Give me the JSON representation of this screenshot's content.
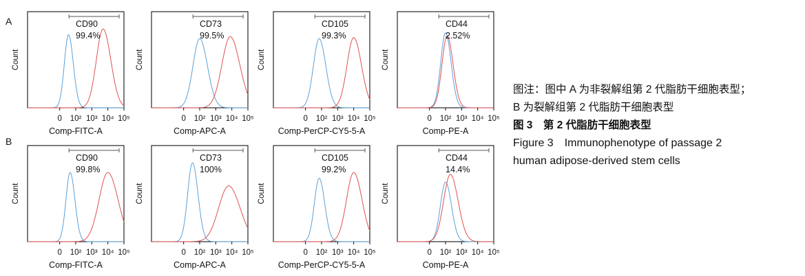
{
  "rows": [
    {
      "label": "A"
    },
    {
      "label": "B"
    }
  ],
  "caption": {
    "note_line1": "图注：图中 A 为非裂解组第 2 代脂肪干细胞表型；",
    "note_line2": "B 为裂解组第 2 代脂肪干细胞表型",
    "title_cn": "图 3　第 2 代脂肪干细胞表型",
    "title_en_line1": "Figure 3　Immunophenotype of passage 2",
    "title_en_line2": "human adipose-derived stem cells"
  },
  "colors": {
    "control": "#5a9fd8",
    "marker": "#e05050",
    "gate": "#555555",
    "axis": "#111111"
  },
  "chart_data": [
    {
      "type": "line",
      "row": "A",
      "marker": "CD90",
      "percent": "99.4%",
      "xlabel": "Comp-FITC-A",
      "ylabel": "Count",
      "x_ticks": [
        "0",
        "10²",
        "10³",
        "10⁴",
        "10⁵"
      ],
      "xlim": [
        -1,
        5
      ],
      "ylim": [
        0,
        1
      ],
      "series": [
        {
          "peak_x": 1.55,
          "width": 0.26,
          "height": 0.76
        },
        {
          "peak_x": 3.7,
          "width": 0.42,
          "height": 0.82
        }
      ]
    },
    {
      "type": "line",
      "row": "A",
      "marker": "CD73",
      "percent": "99.5%",
      "xlabel": "Comp-APC-A",
      "ylabel": "Count",
      "x_ticks": [
        "0",
        "10²",
        "10³",
        "10⁴",
        "10⁵"
      ],
      "xlim": [
        -1,
        5
      ],
      "ylim": [
        0,
        1
      ],
      "series": [
        {
          "peak_x": 2.0,
          "width": 0.42,
          "height": 0.72
        },
        {
          "peak_x": 3.9,
          "width": 0.52,
          "height": 0.74
        }
      ]
    },
    {
      "type": "line",
      "row": "A",
      "marker": "CD105",
      "percent": "99.3%",
      "xlabel": "Comp-PerCP-CY5-5-A",
      "ylabel": "Count",
      "x_ticks": [
        "0",
        "10²",
        "10³",
        "10⁴",
        "10⁵"
      ],
      "xlim": [
        -1,
        5
      ],
      "ylim": [
        0,
        1
      ],
      "series": [
        {
          "peak_x": 1.85,
          "width": 0.36,
          "height": 0.72
        },
        {
          "peak_x": 4.0,
          "width": 0.42,
          "height": 0.73
        }
      ]
    },
    {
      "type": "line",
      "row": "A",
      "marker": "CD44",
      "percent": "2.52%",
      "xlabel": "Comp-PE-A",
      "ylabel": "Count",
      "x_ticks": [
        "0",
        "10²",
        "10³",
        "10⁴",
        "10⁵"
      ],
      "xlim": [
        -1,
        5
      ],
      "ylim": [
        0,
        1
      ],
      "series": [
        {
          "peak_x": 2.0,
          "width": 0.3,
          "height": 0.78
        },
        {
          "peak_x": 2.1,
          "width": 0.32,
          "height": 0.75
        }
      ]
    },
    {
      "type": "line",
      "row": "B",
      "marker": "CD90",
      "percent": "99.8%",
      "xlabel": "Comp-FITC-A",
      "ylabel": "Count",
      "x_ticks": [
        "0",
        "10²",
        "10³",
        "10⁴",
        "10⁵"
      ],
      "xlim": [
        -1,
        5
      ],
      "ylim": [
        0,
        1
      ],
      "series": [
        {
          "peak_x": 1.65,
          "width": 0.26,
          "height": 0.72
        },
        {
          "peak_x": 4.0,
          "width": 0.55,
          "height": 0.72
        }
      ]
    },
    {
      "type": "line",
      "row": "B",
      "marker": "CD73",
      "percent": "100%",
      "xlabel": "Comp-APC-A",
      "ylabel": "Count",
      "x_ticks": [
        "0",
        "10²",
        "10³",
        "10⁴",
        "10⁵"
      ],
      "xlim": [
        -1,
        5
      ],
      "ylim": [
        0,
        1
      ],
      "series": [
        {
          "peak_x": 1.55,
          "width": 0.3,
          "height": 0.82
        },
        {
          "peak_x": 3.8,
          "width": 0.62,
          "height": 0.58
        }
      ]
    },
    {
      "type": "line",
      "row": "B",
      "marker": "CD105",
      "percent": "99.2%",
      "xlabel": "Comp-PerCP-CY5-5-A",
      "ylabel": "Count",
      "x_ticks": [
        "0",
        "10²",
        "10³",
        "10⁴",
        "10⁵"
      ],
      "xlim": [
        -1,
        5
      ],
      "ylim": [
        0,
        1
      ],
      "series": [
        {
          "peak_x": 1.85,
          "width": 0.3,
          "height": 0.66
        },
        {
          "peak_x": 4.0,
          "width": 0.45,
          "height": 0.72
        }
      ]
    },
    {
      "type": "line",
      "row": "B",
      "marker": "CD44",
      "percent": "14.4%",
      "xlabel": "Comp-PE-A",
      "ylabel": "Count",
      "x_ticks": [
        "0",
        "10²",
        "10³",
        "10⁴",
        "10⁵"
      ],
      "xlim": [
        -1,
        5
      ],
      "ylim": [
        0,
        1
      ],
      "series": [
        {
          "peak_x": 2.0,
          "width": 0.32,
          "height": 0.62
        },
        {
          "peak_x": 2.3,
          "width": 0.42,
          "height": 0.7
        }
      ]
    }
  ]
}
